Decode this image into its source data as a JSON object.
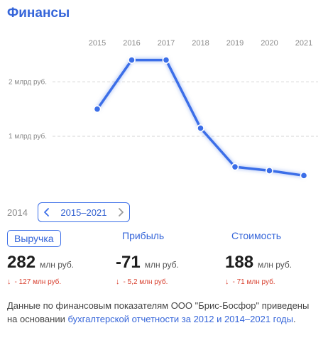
{
  "header": {
    "title": "Финансы"
  },
  "chart_data": {
    "type": "line",
    "x": [
      "2015",
      "2016",
      "2017",
      "2018",
      "2019",
      "2020",
      "2021"
    ],
    "series": [
      {
        "values": [
          1.5,
          2.4,
          2.4,
          1.15,
          0.44,
          0.37,
          0.28
        ]
      }
    ],
    "y_ticks": [
      {
        "value": 2,
        "label": "2 млрд руб."
      },
      {
        "value": 1,
        "label": "1 млрд руб."
      }
    ],
    "ylim": [
      0.05,
      2.85
    ],
    "grid": true,
    "line_color": "#3b6ee8"
  },
  "range": {
    "prev_year": "2014",
    "label": "2015–2021"
  },
  "metrics": [
    {
      "name": "Выручка",
      "value": "282",
      "unit": "млн руб.",
      "delta": "- 127 млн руб.",
      "active": true
    },
    {
      "name": "Прибыль",
      "value": "-71",
      "unit": "млн руб.",
      "delta": "- 5,2 млн руб.",
      "active": false
    },
    {
      "name": "Стоимость",
      "value": "188",
      "unit": "млн руб.",
      "delta": "- 71 млн руб.",
      "active": false
    }
  ],
  "note": {
    "text": "Данные по финансовым показателям ООО \"Брис-Босфор\" приведены на основании ",
    "link": "бухгалтерской отчетности за 2012 и 2014–2021 годы",
    "end": "."
  }
}
